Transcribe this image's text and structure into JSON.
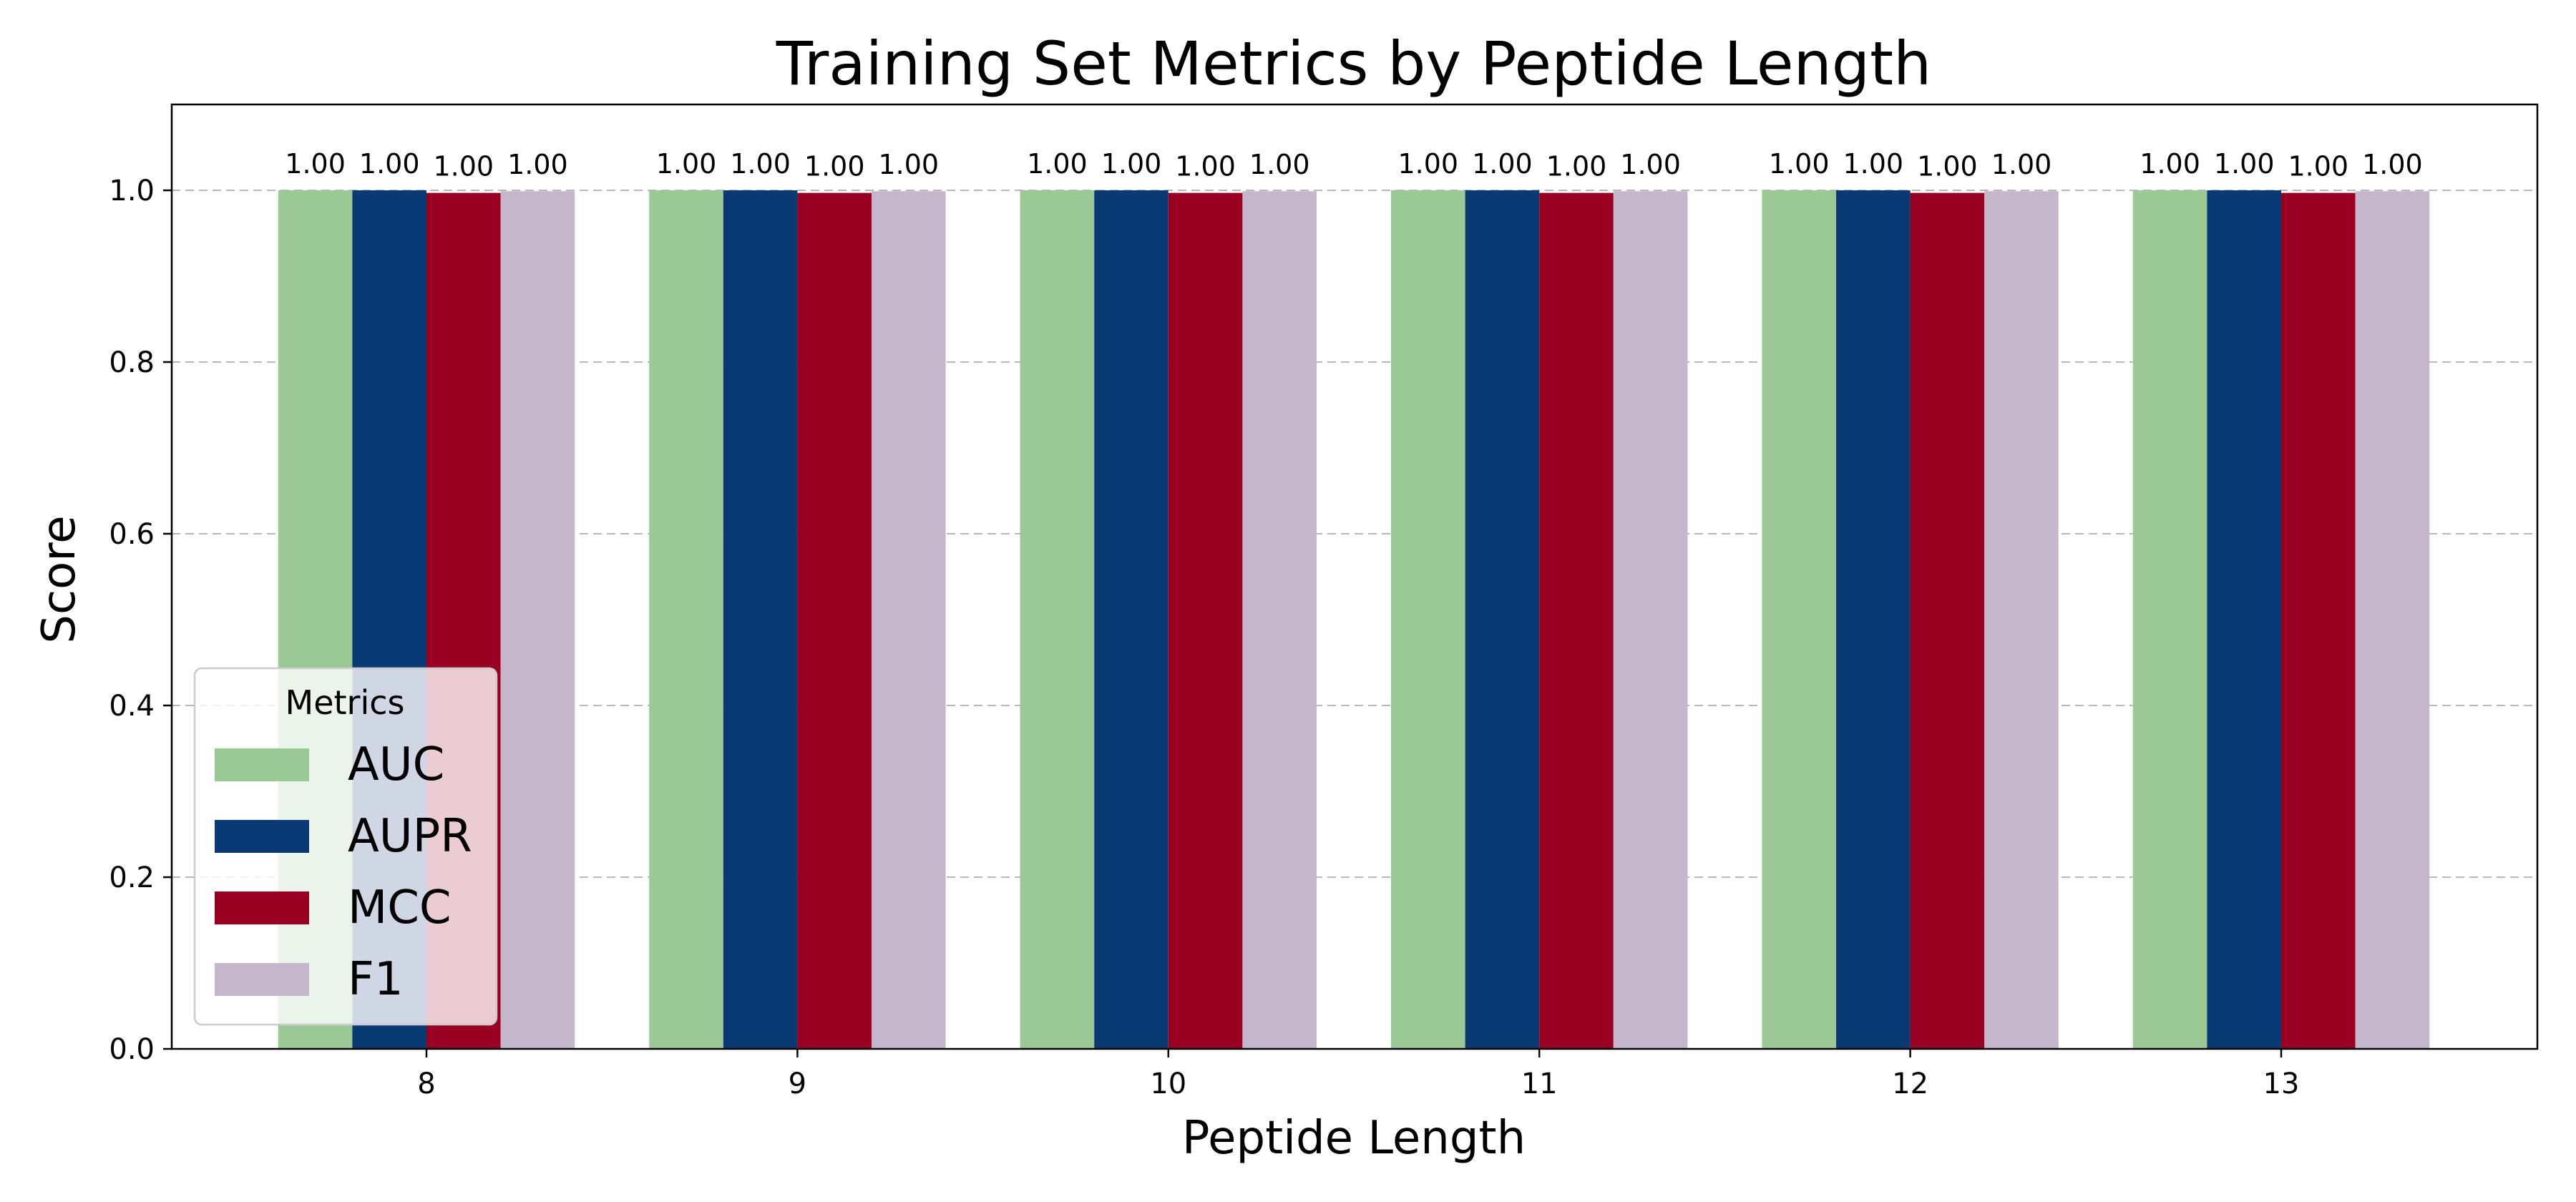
{
  "chart_data": {
    "type": "bar",
    "title": "Training Set Metrics by Peptide Length",
    "xlabel": "Peptide Length",
    "ylabel": "Score",
    "ylim": [
      0,
      1.1
    ],
    "yticks": [
      "0.0",
      "0.2",
      "0.4",
      "0.6",
      "0.8",
      "1.0"
    ],
    "categories": [
      "8",
      "9",
      "10",
      "11",
      "12",
      "13"
    ],
    "grid": "y-dashed",
    "legend": {
      "title": "Metrics",
      "placement": "lower-left"
    },
    "series": [
      {
        "name": "AUC",
        "color": "#9BC995",
        "values": [
          1.0,
          1.0,
          1.0,
          1.0,
          1.0,
          1.0
        ],
        "labels": [
          "1.00",
          "1.00",
          "1.00",
          "1.00",
          "1.00",
          "1.00"
        ]
      },
      {
        "name": "AUPR",
        "color": "#0A3A73",
        "values": [
          1.0,
          1.0,
          1.0,
          1.0,
          1.0,
          1.0
        ],
        "labels": [
          "1.00",
          "1.00",
          "1.00",
          "1.00",
          "1.00",
          "1.00"
        ]
      },
      {
        "name": "MCC",
        "color": "#990021",
        "values": [
          0.997,
          0.997,
          0.997,
          0.997,
          0.997,
          0.997
        ],
        "labels": [
          "1.00",
          "1.00",
          "1.00",
          "1.00",
          "1.00",
          "1.00"
        ]
      },
      {
        "name": "F1",
        "color": "#C4B6CB",
        "values": [
          0.999,
          0.999,
          0.999,
          0.999,
          0.999,
          0.999
        ],
        "labels": [
          "1.00",
          "1.00",
          "1.00",
          "1.00",
          "1.00",
          "1.00"
        ]
      }
    ]
  }
}
